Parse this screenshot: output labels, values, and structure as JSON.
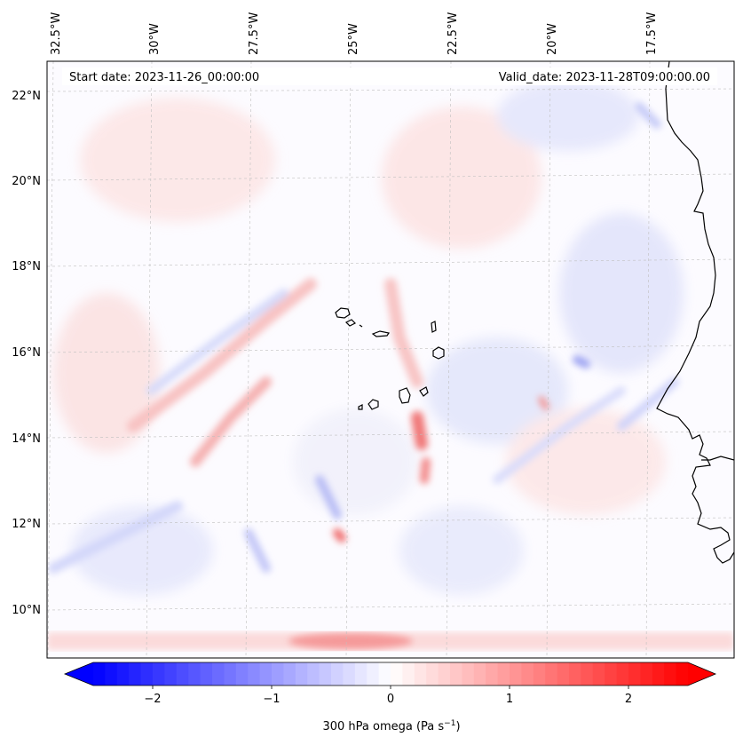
{
  "map": {
    "start_date": "Start date: 2023-11-26_00:00:00",
    "valid_date": "Valid_date: 2023-11-28T09:00:00.00",
    "lon_ticks": [
      "32.5°W",
      "30°W",
      "27.5°W",
      "25°W",
      "22.5°W",
      "20°W",
      "17.5°W"
    ],
    "lat_ticks": [
      "22°N",
      "20°N",
      "18°N",
      "16°N",
      "14°N",
      "12°N",
      "10°N"
    ],
    "grid": true,
    "lon_range": [
      -33,
      -15.5
    ],
    "lat_range": [
      8.8,
      22.8
    ]
  },
  "colorbar": {
    "label_main": "300 hPa omega (Pa s",
    "label_sup": "−1",
    "label_close": ")",
    "ticks": [
      "−2",
      "−1",
      "0",
      "1",
      "2"
    ],
    "tick_values": [
      -2,
      -1,
      0,
      1,
      2
    ],
    "range": [
      -2.5,
      2.5
    ],
    "extend": "both",
    "cmap": "bwr",
    "colors": {
      "negative": "#0000ff",
      "zero": "#ffffff",
      "positive": "#ff0000"
    }
  }
}
